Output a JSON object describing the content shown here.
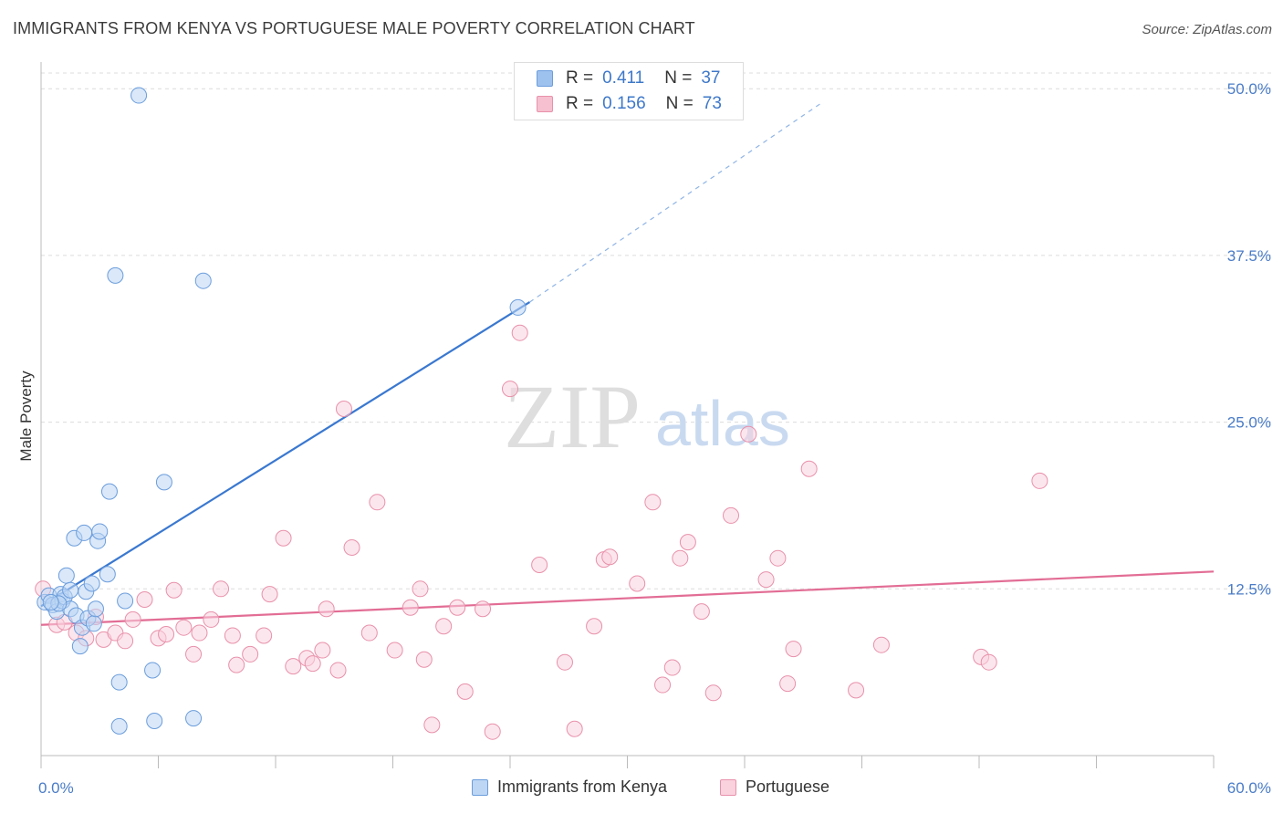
{
  "title": "IMMIGRANTS FROM KENYA VS PORTUGUESE MALE POVERTY CORRELATION CHART",
  "source": "Source: ZipAtlas.com",
  "watermark": {
    "zip": "ZIP",
    "atlas": "atlas"
  },
  "legend_stats": [
    {
      "r_label": "R =",
      "r_value": "0.411",
      "n_label": "N =",
      "n_value": "37",
      "color": "#9ec2ee",
      "border": "#6b9ddc"
    },
    {
      "r_label": "R =",
      "r_value": "0.156",
      "n_label": "N =",
      "n_value": "73",
      "color": "#f6c0d0",
      "border": "#e891ab"
    }
  ],
  "bottom_legend": [
    {
      "label": "Immigrants from Kenya",
      "color": "#bcd6f4",
      "border": "#6b9ddc"
    },
    {
      "label": "Portuguese",
      "color": "#f9d2de",
      "border": "#e891ab"
    }
  ],
  "chart_data": {
    "type": "scatter",
    "title": "IMMIGRANTS FROM KENYA VS PORTUGUESE MALE POVERTY CORRELATION CHART",
    "xlabel": "",
    "ylabel": "Male Poverty",
    "xlim": [
      0,
      60
    ],
    "ylim": [
      0,
      52
    ],
    "x_tick_labels": [
      "0.0%",
      "60.0%"
    ],
    "y_ticks": [
      12.5,
      25.0,
      37.5,
      50.0
    ],
    "y_tick_labels": [
      "12.5%",
      "25.0%",
      "37.5%",
      "50.0%"
    ],
    "grid": true,
    "series": [
      {
        "name": "Immigrants from Kenya",
        "color": "#6b9ddc",
        "fill": "#bcd6f4",
        "trend": {
          "x": [
            0,
            25
          ],
          "y": [
            11.2,
            34.0
          ],
          "dashed_to": [
            40,
            49.0
          ]
        },
        "points": [
          [
            0.2,
            11.5
          ],
          [
            0.4,
            12.0
          ],
          [
            0.6,
            11.3
          ],
          [
            0.8,
            10.8
          ],
          [
            1.0,
            12.1
          ],
          [
            1.1,
            11.6
          ],
          [
            1.2,
            11.9
          ],
          [
            1.3,
            13.5
          ],
          [
            1.5,
            12.4
          ],
          [
            1.5,
            11.0
          ],
          [
            1.7,
            16.3
          ],
          [
            1.8,
            10.5
          ],
          [
            2.0,
            8.2
          ],
          [
            2.1,
            9.6
          ],
          [
            2.2,
            16.7
          ],
          [
            2.3,
            12.3
          ],
          [
            2.4,
            10.3
          ],
          [
            2.6,
            12.9
          ],
          [
            2.7,
            9.9
          ],
          [
            2.8,
            11.0
          ],
          [
            2.9,
            16.1
          ],
          [
            3.0,
            16.8
          ],
          [
            3.4,
            13.6
          ],
          [
            3.5,
            19.8
          ],
          [
            3.8,
            36.0
          ],
          [
            4.0,
            5.5
          ],
          [
            4.0,
            2.2
          ],
          [
            4.3,
            11.6
          ],
          [
            5.0,
            49.5
          ],
          [
            5.7,
            6.4
          ],
          [
            5.8,
            2.6
          ],
          [
            6.3,
            20.5
          ],
          [
            7.8,
            2.8
          ],
          [
            8.3,
            35.6
          ],
          [
            24.4,
            33.6
          ],
          [
            0.9,
            11.4
          ],
          [
            0.5,
            11.5
          ]
        ]
      },
      {
        "name": "Portuguese",
        "color": "#e891ab",
        "fill": "#f9d2de",
        "trend": {
          "x": [
            0,
            60
          ],
          "y": [
            9.8,
            13.8
          ]
        },
        "points": [
          [
            0.1,
            12.5
          ],
          [
            0.8,
            9.8
          ],
          [
            1.2,
            10.0
          ],
          [
            1.8,
            9.2
          ],
          [
            2.3,
            8.8
          ],
          [
            2.8,
            10.4
          ],
          [
            3.2,
            8.7
          ],
          [
            3.8,
            9.2
          ],
          [
            4.3,
            8.6
          ],
          [
            4.7,
            10.2
          ],
          [
            5.3,
            11.7
          ],
          [
            6.0,
            8.8
          ],
          [
            6.4,
            9.1
          ],
          [
            6.8,
            12.4
          ],
          [
            7.3,
            9.6
          ],
          [
            7.8,
            7.6
          ],
          [
            8.1,
            9.2
          ],
          [
            8.7,
            10.2
          ],
          [
            9.2,
            12.5
          ],
          [
            9.8,
            9.0
          ],
          [
            10.0,
            6.8
          ],
          [
            10.7,
            7.6
          ],
          [
            11.4,
            9.0
          ],
          [
            11.7,
            12.1
          ],
          [
            12.4,
            16.3
          ],
          [
            12.9,
            6.7
          ],
          [
            13.6,
            7.3
          ],
          [
            13.9,
            6.9
          ],
          [
            14.4,
            7.9
          ],
          [
            14.6,
            11.0
          ],
          [
            15.2,
            6.4
          ],
          [
            15.5,
            26.0
          ],
          [
            15.9,
            15.6
          ],
          [
            16.8,
            9.2
          ],
          [
            17.2,
            19.0
          ],
          [
            18.1,
            7.9
          ],
          [
            18.9,
            11.1
          ],
          [
            19.4,
            12.5
          ],
          [
            19.6,
            7.2
          ],
          [
            20.0,
            2.3
          ],
          [
            20.6,
            9.7
          ],
          [
            21.3,
            11.1
          ],
          [
            21.7,
            4.8
          ],
          [
            22.6,
            11.0
          ],
          [
            23.1,
            1.8
          ],
          [
            24.0,
            27.5
          ],
          [
            24.5,
            31.7
          ],
          [
            25.5,
            14.3
          ],
          [
            26.8,
            7.0
          ],
          [
            27.3,
            2.0
          ],
          [
            28.3,
            9.7
          ],
          [
            28.8,
            14.7
          ],
          [
            29.1,
            14.9
          ],
          [
            30.5,
            12.9
          ],
          [
            31.3,
            19.0
          ],
          [
            31.8,
            5.3
          ],
          [
            32.3,
            6.6
          ],
          [
            32.7,
            14.8
          ],
          [
            33.1,
            16.0
          ],
          [
            33.8,
            10.8
          ],
          [
            34.4,
            4.7
          ],
          [
            35.3,
            18.0
          ],
          [
            36.2,
            24.1
          ],
          [
            37.1,
            13.2
          ],
          [
            37.7,
            14.8
          ],
          [
            38.2,
            5.4
          ],
          [
            38.5,
            8.0
          ],
          [
            39.3,
            21.5
          ],
          [
            41.7,
            4.9
          ],
          [
            43.0,
            8.3
          ],
          [
            48.1,
            7.4
          ],
          [
            48.5,
            7.0
          ],
          [
            51.1,
            20.6
          ]
        ]
      }
    ]
  }
}
